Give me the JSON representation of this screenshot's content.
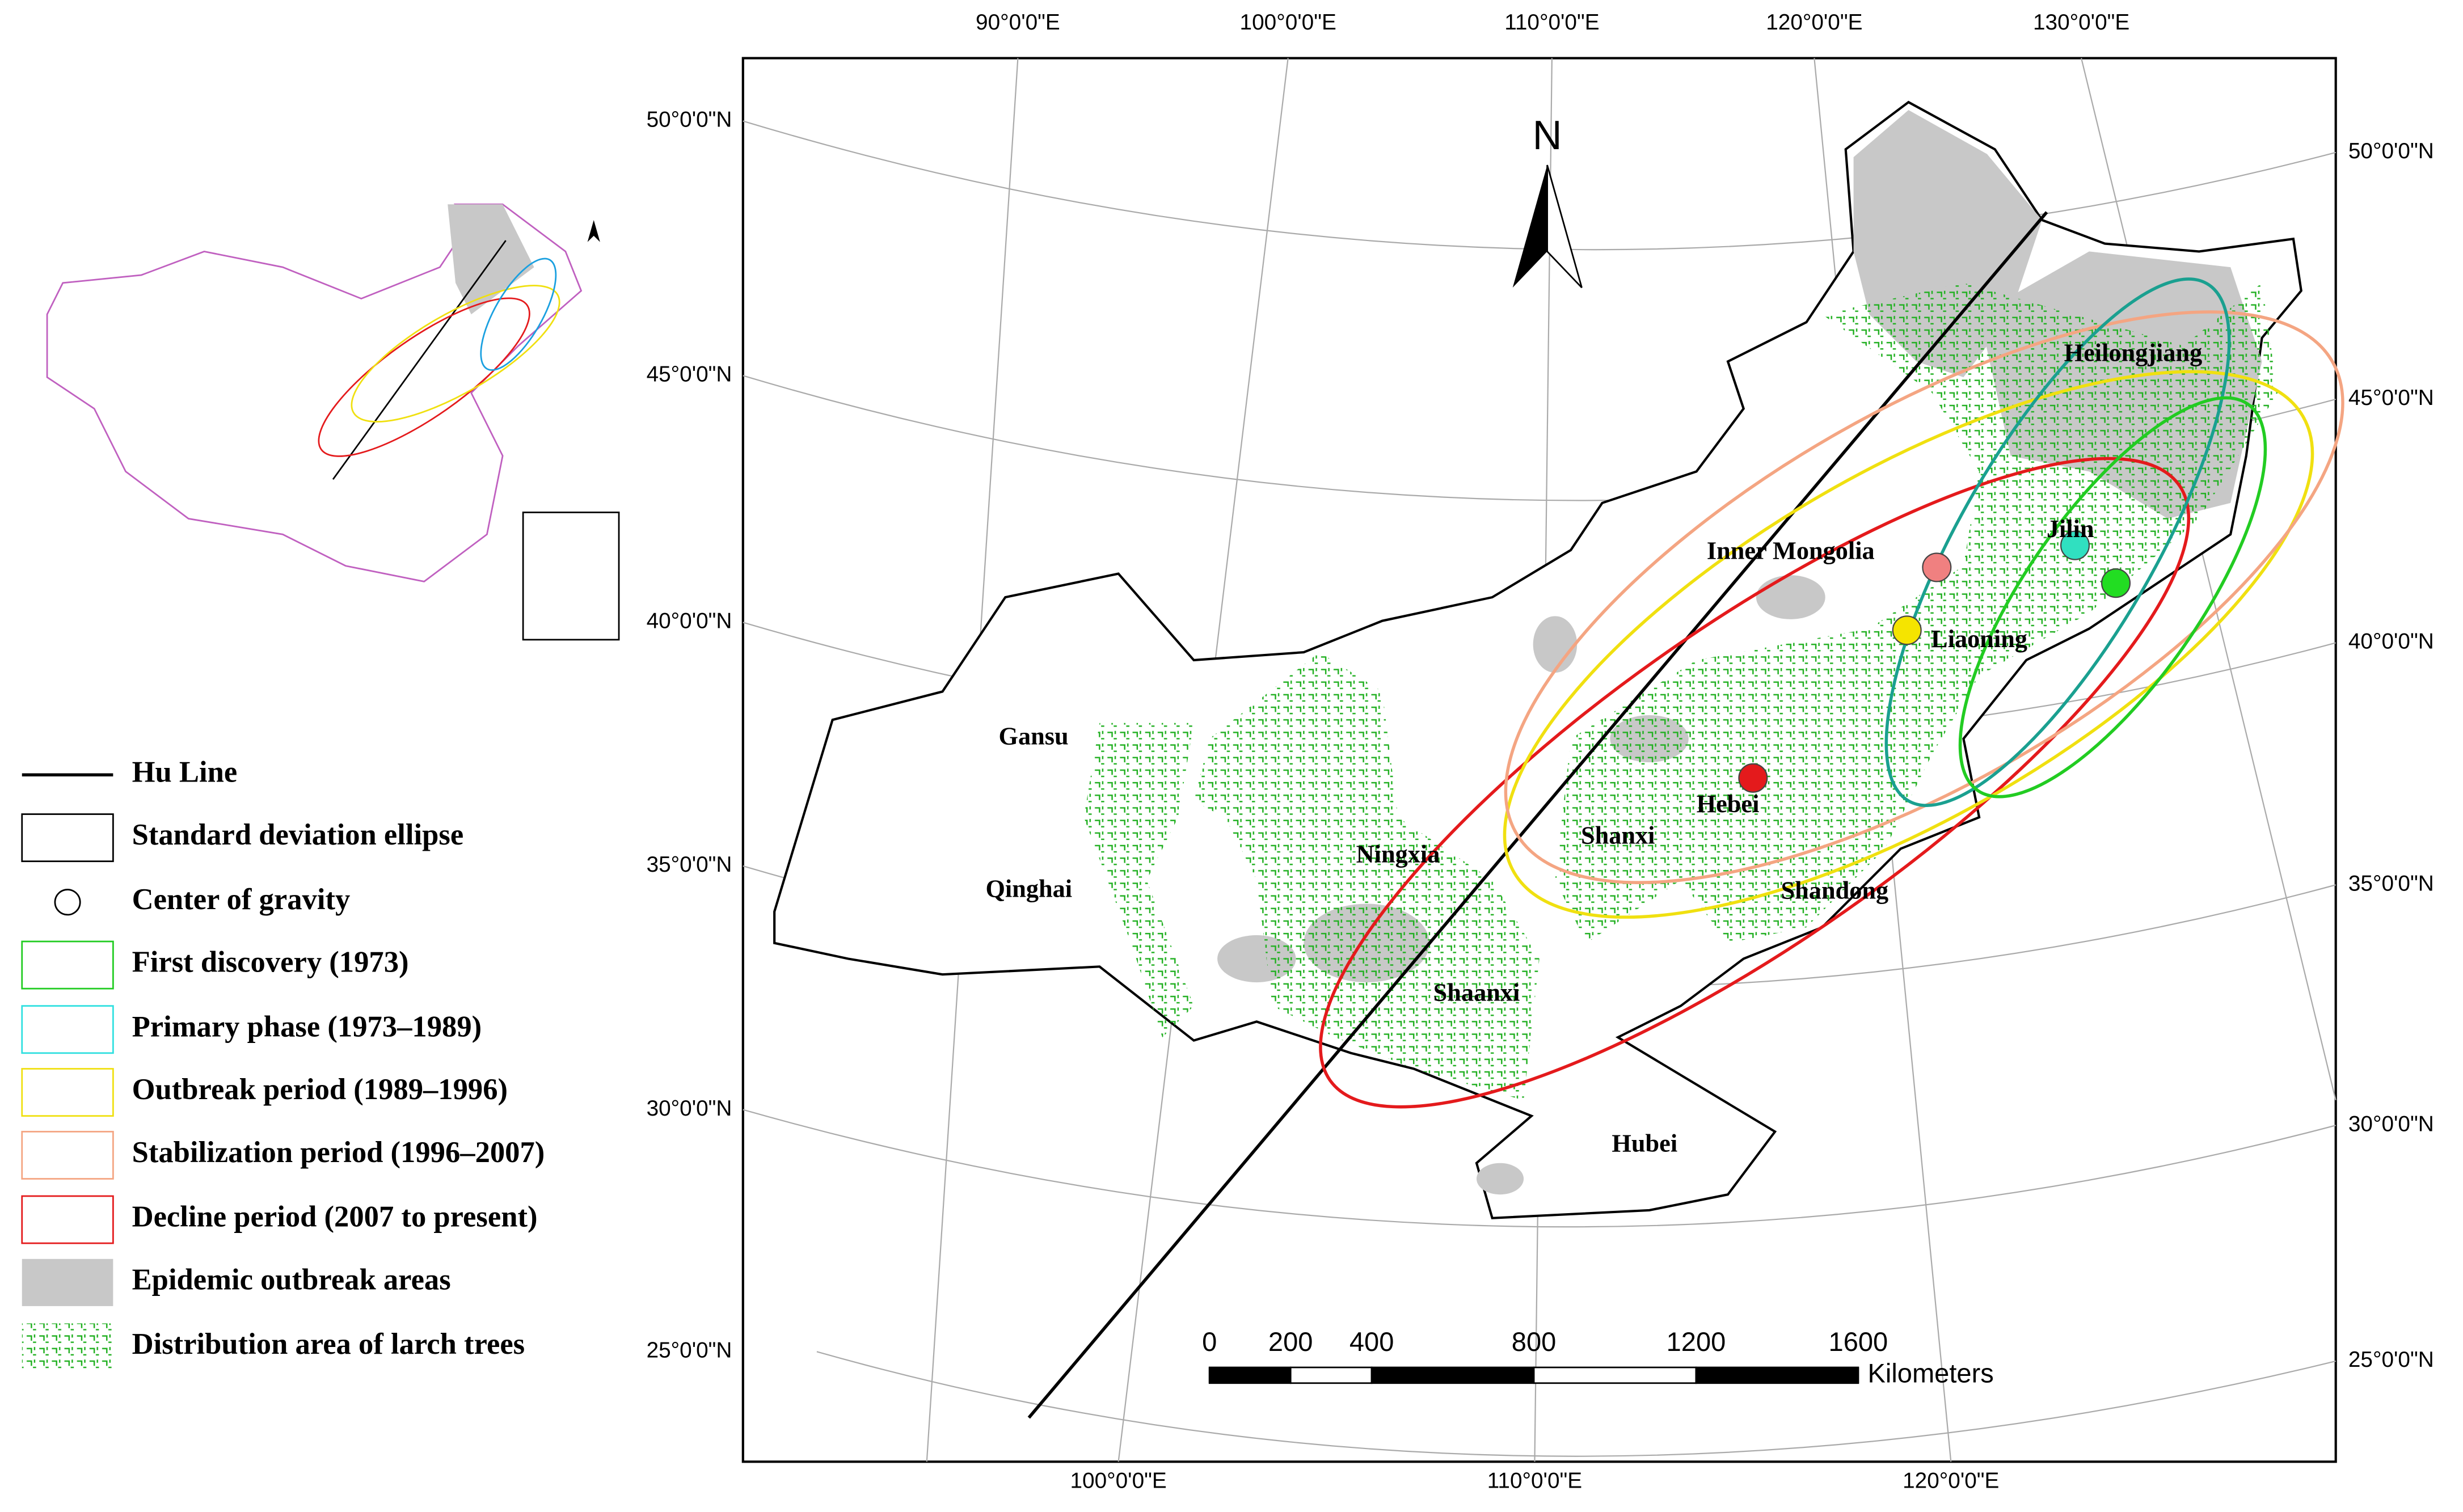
{
  "graticule": {
    "top_labels": [
      "90°0'0\"E",
      "100°0'0\"E",
      "110°0'0\"E",
      "120°0'0\"E",
      "130°0'0\"E"
    ],
    "bottom_labels": [
      "100°0'0\"E",
      "110°0'0\"E",
      "120°0'0\"E"
    ],
    "left_labels": [
      "50°0'0\"N",
      "45°0'0\"N",
      "40°0'0\"N",
      "35°0'0\"N",
      "30°0'0\"N",
      "25°0'0\"N"
    ],
    "right_labels": [
      "50°0'0\"N",
      "45°0'0\"N",
      "40°0'0\"N",
      "35°0'0\"N",
      "30°0'0\"N",
      "25°0'0\"N"
    ]
  },
  "north_arrow": {
    "label": "N"
  },
  "provinces": [
    "Gansu",
    "Qinghai",
    "Ningxia",
    "Shaanxi",
    "Shanxi",
    "Hebei",
    "Shandong",
    "Hubei",
    "Inner Mongolia",
    "Liaoning",
    "Jilin",
    "Heilongjiang"
  ],
  "legend": {
    "items": [
      "Hu Line",
      "Standard deviation ellipse",
      "Center of gravity",
      "First discovery (1973)",
      "Primary phase (1973–1989)",
      "Outbreak period (1989–1996)",
      "Stabilization period (1996–2007)",
      "Decline period (2007 to present)",
      "Epidemic outbreak areas",
      "Distribution area of larch trees"
    ]
  },
  "scale_bar": {
    "ticks": [
      0,
      200,
      400,
      800,
      1200,
      1600
    ],
    "unit": "Kilometers"
  }
}
